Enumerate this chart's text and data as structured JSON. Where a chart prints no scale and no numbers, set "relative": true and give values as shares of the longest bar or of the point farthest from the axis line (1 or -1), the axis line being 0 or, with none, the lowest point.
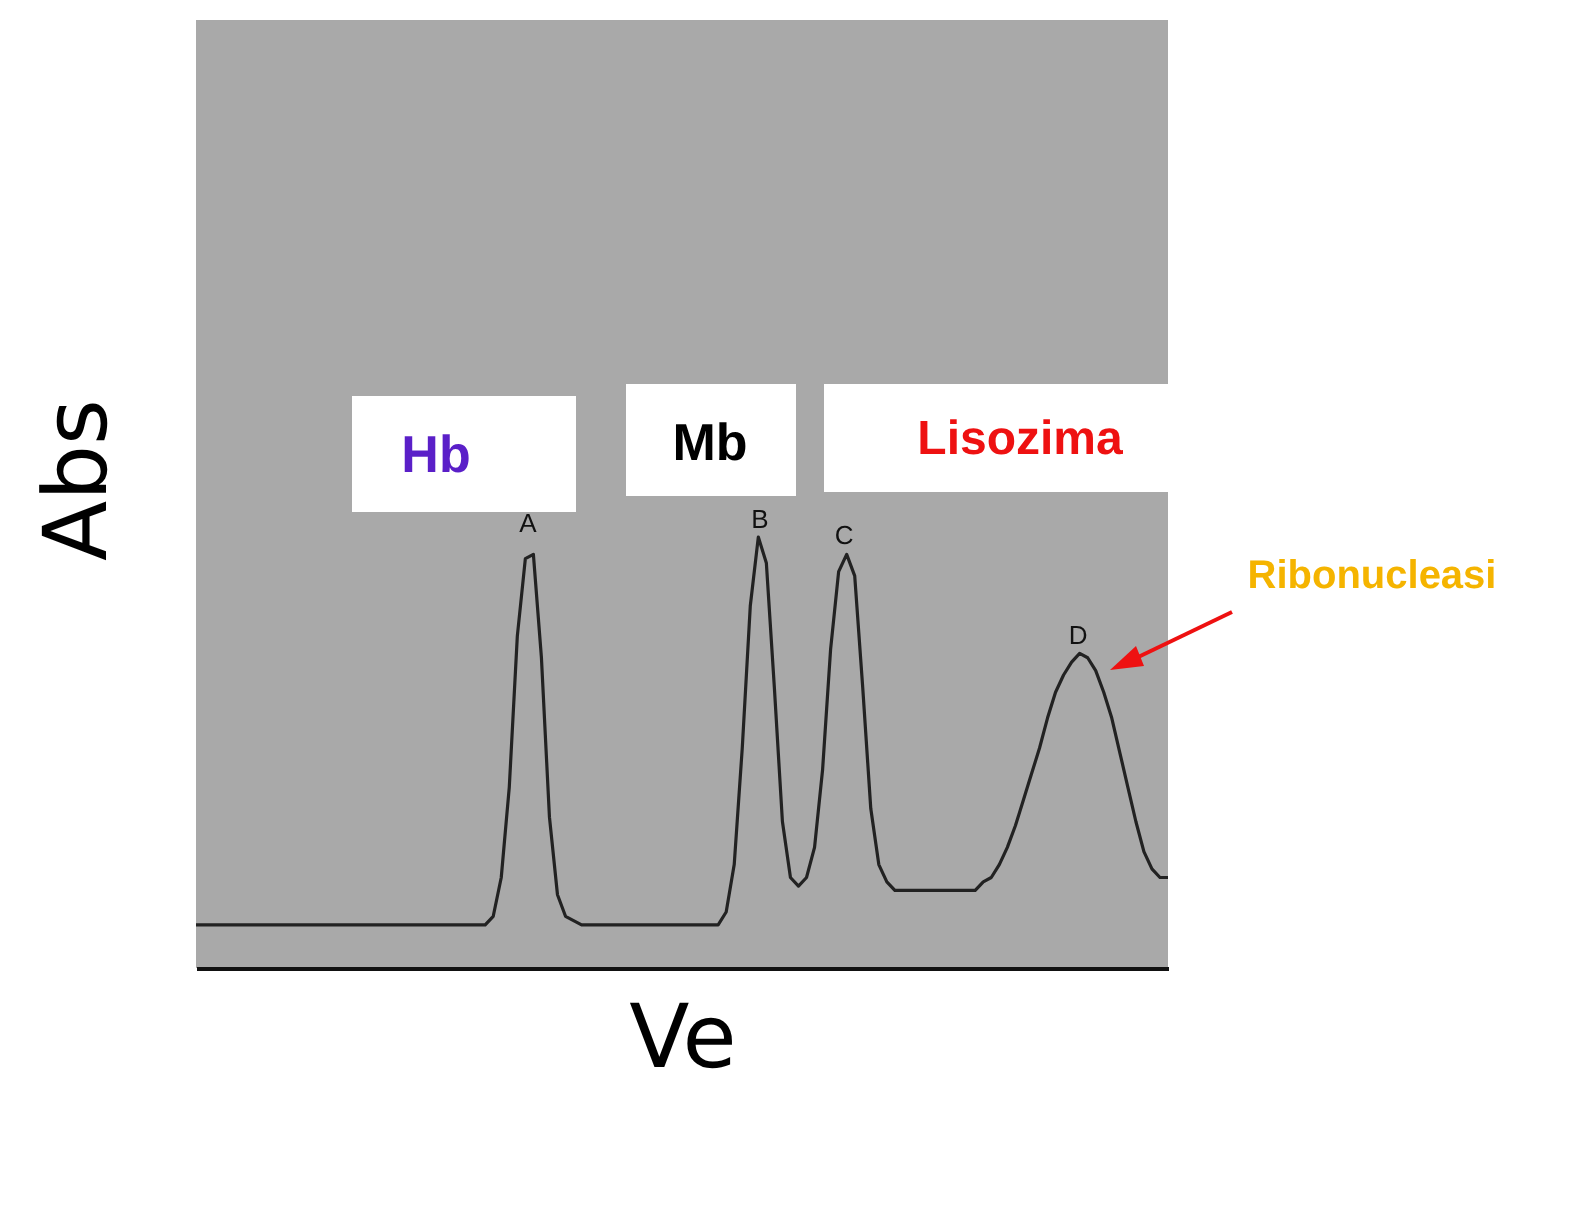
{
  "chart_data": {
    "type": "line",
    "relative": true,
    "xlabel": "Ve",
    "ylabel": "Abs",
    "annotations": [
      "Hb",
      "Mb",
      "Lisozima",
      "Ribonucleasi",
      "A",
      "B",
      "C",
      "D"
    ],
    "categories": [
      null,
      null,
      null,
      null,
      null,
      null,
      null,
      null,
      null,
      null,
      null,
      null,
      null,
      null,
      null,
      null,
      null,
      null,
      null,
      null,
      null,
      null,
      null,
      null,
      null,
      null,
      null,
      null,
      null,
      null,
      null,
      null,
      null,
      null,
      null,
      null,
      null,
      null,
      null,
      null,
      null,
      null,
      null,
      null,
      null,
      null,
      null,
      null,
      null,
      null,
      null,
      null,
      null,
      null,
      null,
      null,
      null,
      null,
      null,
      null,
      null,
      null,
      null,
      null,
      null,
      null,
      null,
      null,
      null,
      null,
      null,
      null,
      null,
      null,
      null,
      null,
      null,
      null,
      null,
      null,
      null,
      null,
      null,
      null,
      null,
      null,
      null,
      null,
      null,
      null,
      null,
      null,
      null,
      null,
      null,
      null,
      null,
      null,
      null,
      null,
      null,
      null,
      null,
      null,
      null,
      null,
      null,
      null,
      null,
      null,
      null,
      null,
      null,
      null,
      null,
      null,
      null,
      null,
      null,
      null,
      null,
      null
    ],
    "series": [
      {
        "color": "#222222",
        "values": [
          0.1,
          0.1,
          0.1,
          0.1,
          0.1,
          0.1,
          0.1,
          0.1,
          0.1,
          0.1,
          0.1,
          0.1,
          0.1,
          0.1,
          0.1,
          0.1,
          0.1,
          0.1,
          0.1,
          0.1,
          0.1,
          0.1,
          0.1,
          0.1,
          0.1,
          0.1,
          0.1,
          0.1,
          0.1,
          0.1,
          0.1,
          0.1,
          0.1,
          0.1,
          0.1,
          0.1,
          0.1,
          0.12,
          0.21,
          0.42,
          0.77,
          0.95,
          0.96,
          0.72,
          0.35,
          0.17,
          0.12,
          0.11,
          0.1,
          0.1,
          0.1,
          0.1,
          0.1,
          0.1,
          0.1,
          0.1,
          0.1,
          0.1,
          0.1,
          0.1,
          0.1,
          0.1,
          0.1,
          0.1,
          0.1,
          0.1,
          0.13,
          0.24,
          0.51,
          0.84,
          1,
          0.94,
          0.65,
          0.34,
          0.21,
          0.19,
          0.21,
          0.28,
          0.46,
          0.74,
          0.92,
          0.96,
          0.91,
          0.65,
          0.37,
          0.24,
          0.2,
          0.18,
          0.18,
          0.18,
          0.18,
          0.18,
          0.18,
          0.18,
          0.18,
          0.18,
          0.18,
          0.18,
          0.2,
          0.21,
          0.24,
          0.28,
          0.33,
          0.39,
          0.45,
          0.51,
          0.58,
          0.64,
          0.68,
          0.71,
          0.73,
          0.72,
          0.69,
          0.64,
          0.58,
          0.5,
          0.42,
          0.34,
          0.27,
          0.23,
          0.21,
          0.21
        ]
      }
    ]
  }
}
